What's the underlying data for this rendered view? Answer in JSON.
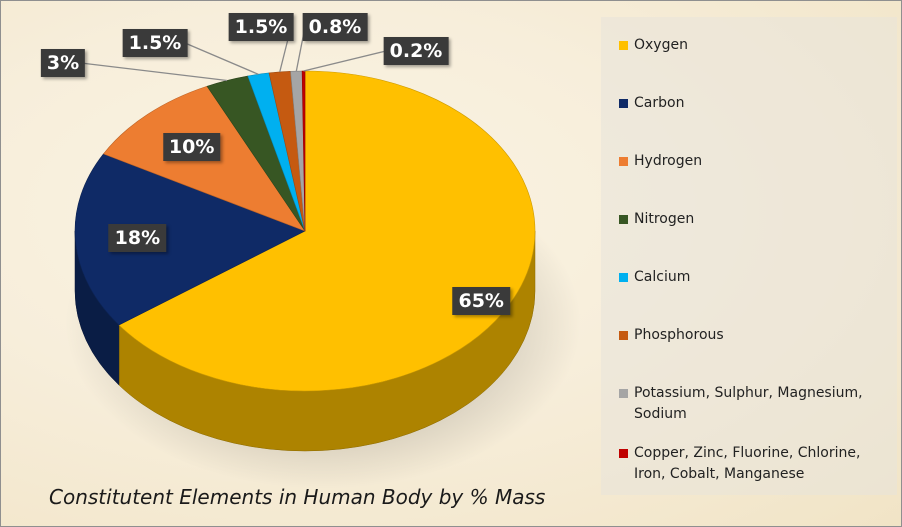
{
  "chart_data": {
    "type": "pie",
    "title": "Constitutent Elements in Human Body by % Mass",
    "slices": [
      {
        "name": "Oxygen",
        "value": 65,
        "label": "65%",
        "color": "#ffc000"
      },
      {
        "name": "Carbon",
        "value": 18,
        "label": "18%",
        "color": "#0f2a66"
      },
      {
        "name": "Hydrogen",
        "value": 10,
        "label": "10%",
        "color": "#ed7d31"
      },
      {
        "name": "Nitrogen",
        "value": 3,
        "label": "3%",
        "color": "#375623"
      },
      {
        "name": "Calcium",
        "value": 1.5,
        "label": "1.5%",
        "color": "#00b0f0"
      },
      {
        "name": "Phosphorous",
        "value": 1.5,
        "label": "1.5%",
        "color": "#c55a11"
      },
      {
        "name": "Potassium, Sulphur, Magnesium, Sodium",
        "value": 0.8,
        "label": "0.8%",
        "color": "#a5a5a5"
      },
      {
        "name": "Copper, Zinc, Fluorine, Chlorine, Iron, Cobalt, Manganese",
        "value": 0.2,
        "label": "0.2%",
        "color": "#c00000"
      }
    ],
    "legend_position": "right",
    "style": "3d-pie"
  }
}
